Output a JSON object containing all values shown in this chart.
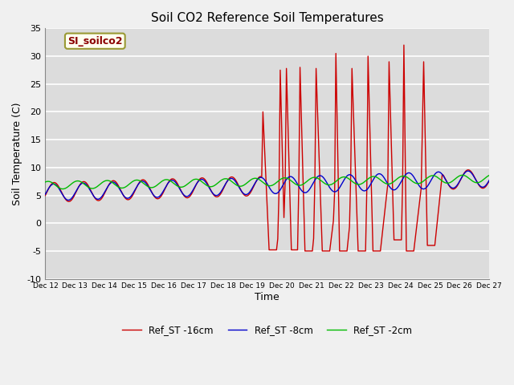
{
  "title": "Soil CO2 Reference Soil Temperatures",
  "xlabel": "Time",
  "ylabel": "Soil Temperature (C)",
  "ylim": [
    -10,
    35
  ],
  "background_color": "#dcdcdc",
  "plot_bg_color": "#dcdcdc",
  "xtick_labels": [
    "Dec 12",
    "Dec 13",
    "Dec 14",
    "Dec 15",
    "Dec 16",
    "Dec 17",
    "Dec 18",
    "Dec 19",
    "Dec 20",
    "Dec 21",
    "Dec 22",
    "Dec 23",
    "Dec 24",
    "Dec 25",
    "Dec 26",
    "Dec 27"
  ],
  "ytick_values": [
    -10,
    -5,
    0,
    5,
    10,
    15,
    20,
    25,
    30,
    35
  ],
  "legend_label": "SI_soilco2",
  "color_red": "#cc0000",
  "color_blue": "#0000cc",
  "color_green": "#00bb00",
  "series_labels": [
    "Ref_ST -16cm",
    "Ref_ST -8cm",
    "Ref_ST -2cm"
  ],
  "line_width": 1.0,
  "n_days": 15,
  "n_per_day": 24,
  "spike_data": [
    [
      7.3,
      20.0,
      7.55,
      -4.8
    ],
    [
      7.9,
      27.5,
      8.05,
      1.0
    ],
    [
      8.1,
      27.8,
      8.3,
      -4.8
    ],
    [
      8.55,
      28.0,
      8.75,
      -5.0
    ],
    [
      9.1,
      27.8,
      9.35,
      -5.0
    ],
    [
      9.75,
      30.5,
      9.95,
      -5.0
    ],
    [
      10.3,
      27.8,
      10.55,
      -5.0
    ],
    [
      10.85,
      30.0,
      11.05,
      -5.0
    ],
    [
      11.55,
      29.0,
      11.75,
      -3.0
    ],
    [
      12.05,
      32.0,
      12.2,
      -5.0
    ],
    [
      12.7,
      29.0,
      12.9,
      -4.0
    ]
  ]
}
